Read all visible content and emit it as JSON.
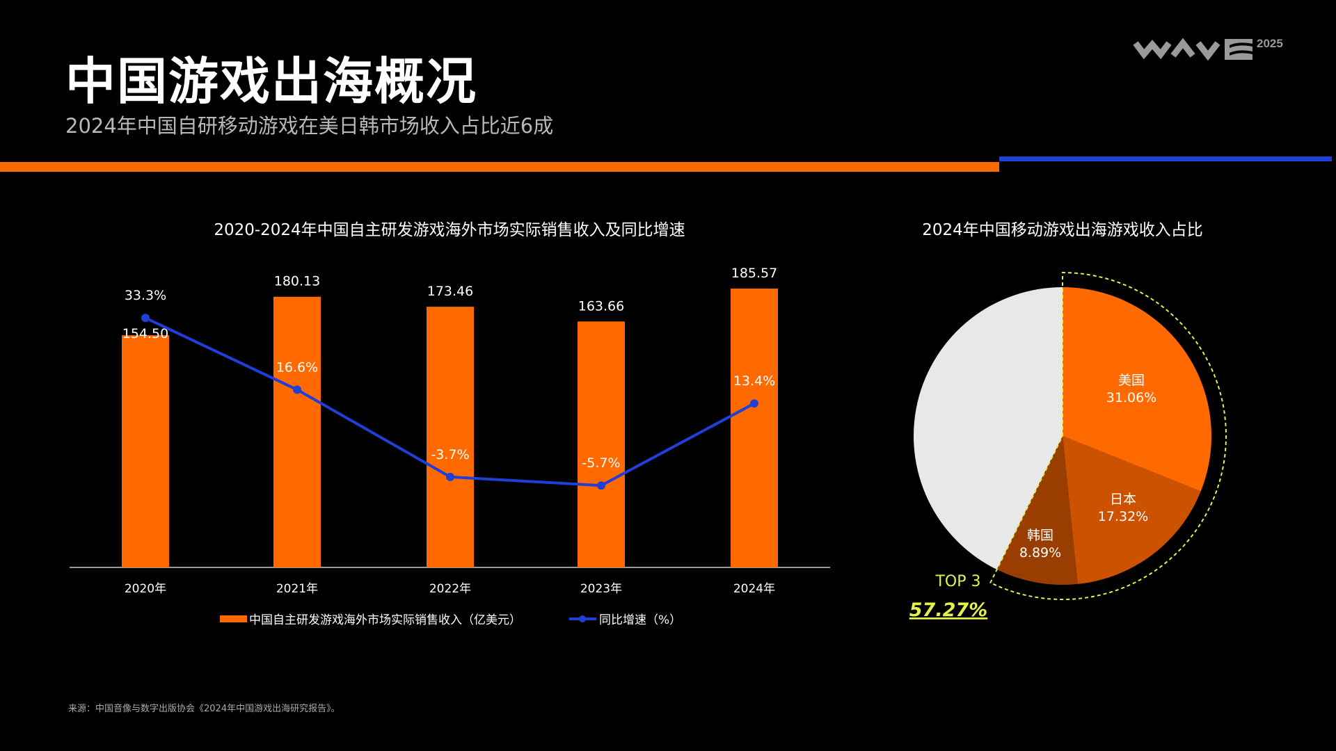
{
  "header": {
    "title": "中国游戏出海概况",
    "subtitle": "2024年中国自研移动游戏在美日韩市场收入占比近6成",
    "logo_text": "WAVE",
    "logo_year": "2025"
  },
  "colors": {
    "orange": "#ff6a00",
    "blue": "#1f3fd6",
    "pie_dark1": "#cc5200",
    "pie_dark2": "#993d00",
    "pie_other": "#e8e8e8",
    "highlight": "#e6f04a"
  },
  "chart_data": [
    {
      "type": "bar",
      "title": "2020-2024年中国自主研发游戏海外市场实际销售收入及同比增速",
      "categories": [
        "2020年",
        "2021年",
        "2022年",
        "2023年",
        "2024年"
      ],
      "series": [
        {
          "name": "中国自主研发游戏海外市场实际销售收入（亿美元）",
          "type": "bar",
          "values": [
            154.5,
            180.13,
            173.46,
            163.66,
            185.57
          ],
          "labels": [
            "154.50",
            "180.13",
            "173.46",
            "163.66",
            "185.57"
          ]
        },
        {
          "name": "同比增速（%）",
          "type": "line",
          "values": [
            33.3,
            16.6,
            -3.7,
            -5.7,
            13.4
          ],
          "labels": [
            "33.3%",
            "16.6%",
            "-3.7%",
            "-5.7%",
            "13.4%"
          ]
        }
      ],
      "legend": "bottom",
      "grid": false
    },
    {
      "type": "pie",
      "title": "2024年中国移动游戏出海游戏收入占比",
      "slices": [
        {
          "label": "美国",
          "value": 31.06,
          "text": "31.06%"
        },
        {
          "label": "日本",
          "value": 17.32,
          "text": "17.32%"
        },
        {
          "label": "韩国",
          "value": 8.89,
          "text": "8.89%"
        },
        {
          "label": "",
          "value": 42.73
        }
      ],
      "annotation": {
        "label": "TOP 3",
        "value": "57.27%"
      }
    }
  ],
  "footnote": "来源：中国音像与数字出版协会《2024年中国游戏出海研究报告》。"
}
